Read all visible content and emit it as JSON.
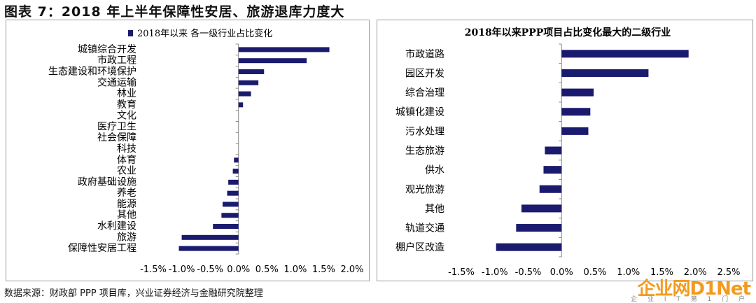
{
  "figure_title": "图表 7：2018 年上半年保障性安居、旅游退库力度大",
  "source_note": "数据来源：财政部 PPP 项目库，兴业证券经济与金融研究院整理",
  "watermark": {
    "main": "企业网D1Net",
    "sub": "企 业 I T 第 1 门 户"
  },
  "colors": {
    "bar": "#1a1a6e",
    "axis": "#888888"
  },
  "chart_data": [
    {
      "type": "bar",
      "orientation": "horizontal",
      "legend": "2018年以来 各一级行业占比变化",
      "legend_position": "top-left",
      "categories": [
        "城镇综合开发",
        "市政工程",
        "生态建设和环境保护",
        "交通运输",
        "林业",
        "教育",
        "文化",
        "医疗卫生",
        "社会保障",
        "科技",
        "体育",
        "农业",
        "政府基础设施",
        "养老",
        "能源",
        "其他",
        "水利建设",
        "旅游",
        "保障性安居工程"
      ],
      "values": [
        1.6,
        1.2,
        0.45,
        0.35,
        0.22,
        0.08,
        0.0,
        0.0,
        0.0,
        0.0,
        -0.08,
        -0.1,
        -0.18,
        -0.2,
        -0.28,
        -0.3,
        -0.45,
        -1.0,
        -1.05
      ],
      "xlim": [
        -1.5,
        2.0
      ],
      "ticks": [
        "-1.5%",
        "-1.0%",
        "-0.5%",
        "0.0%",
        "0.5%",
        "1.0%",
        "1.5%",
        "2.0%"
      ],
      "tick_values": [
        -1.5,
        -1.0,
        -0.5,
        0.0,
        0.5,
        1.0,
        1.5,
        2.0
      ],
      "unit": "%"
    },
    {
      "type": "bar",
      "orientation": "horizontal",
      "title": "2018年以来PPP项目占比变化最大的二级行业",
      "categories": [
        "市政道路",
        "园区开发",
        "综合治理",
        "城镇化建设",
        "污水处理",
        "生态旅游",
        "供水",
        "观光旅游",
        "其他",
        "轨道交通",
        "棚户区改造"
      ],
      "values": [
        1.9,
        1.3,
        0.48,
        0.43,
        0.4,
        -0.25,
        -0.27,
        -0.33,
        -0.6,
        -0.68,
        -0.98
      ],
      "xlim": [
        -1.5,
        2.5
      ],
      "ticks": [
        "-1.5%",
        "-1.0%",
        "-0.5%",
        "0.0%",
        "0.5%",
        "1.0%",
        "1.5%",
        "2.0%",
        "2.5%"
      ],
      "tick_values": [
        -1.5,
        -1.0,
        -0.5,
        0.0,
        0.5,
        1.0,
        1.5,
        2.0,
        2.5
      ],
      "unit": "%"
    }
  ]
}
